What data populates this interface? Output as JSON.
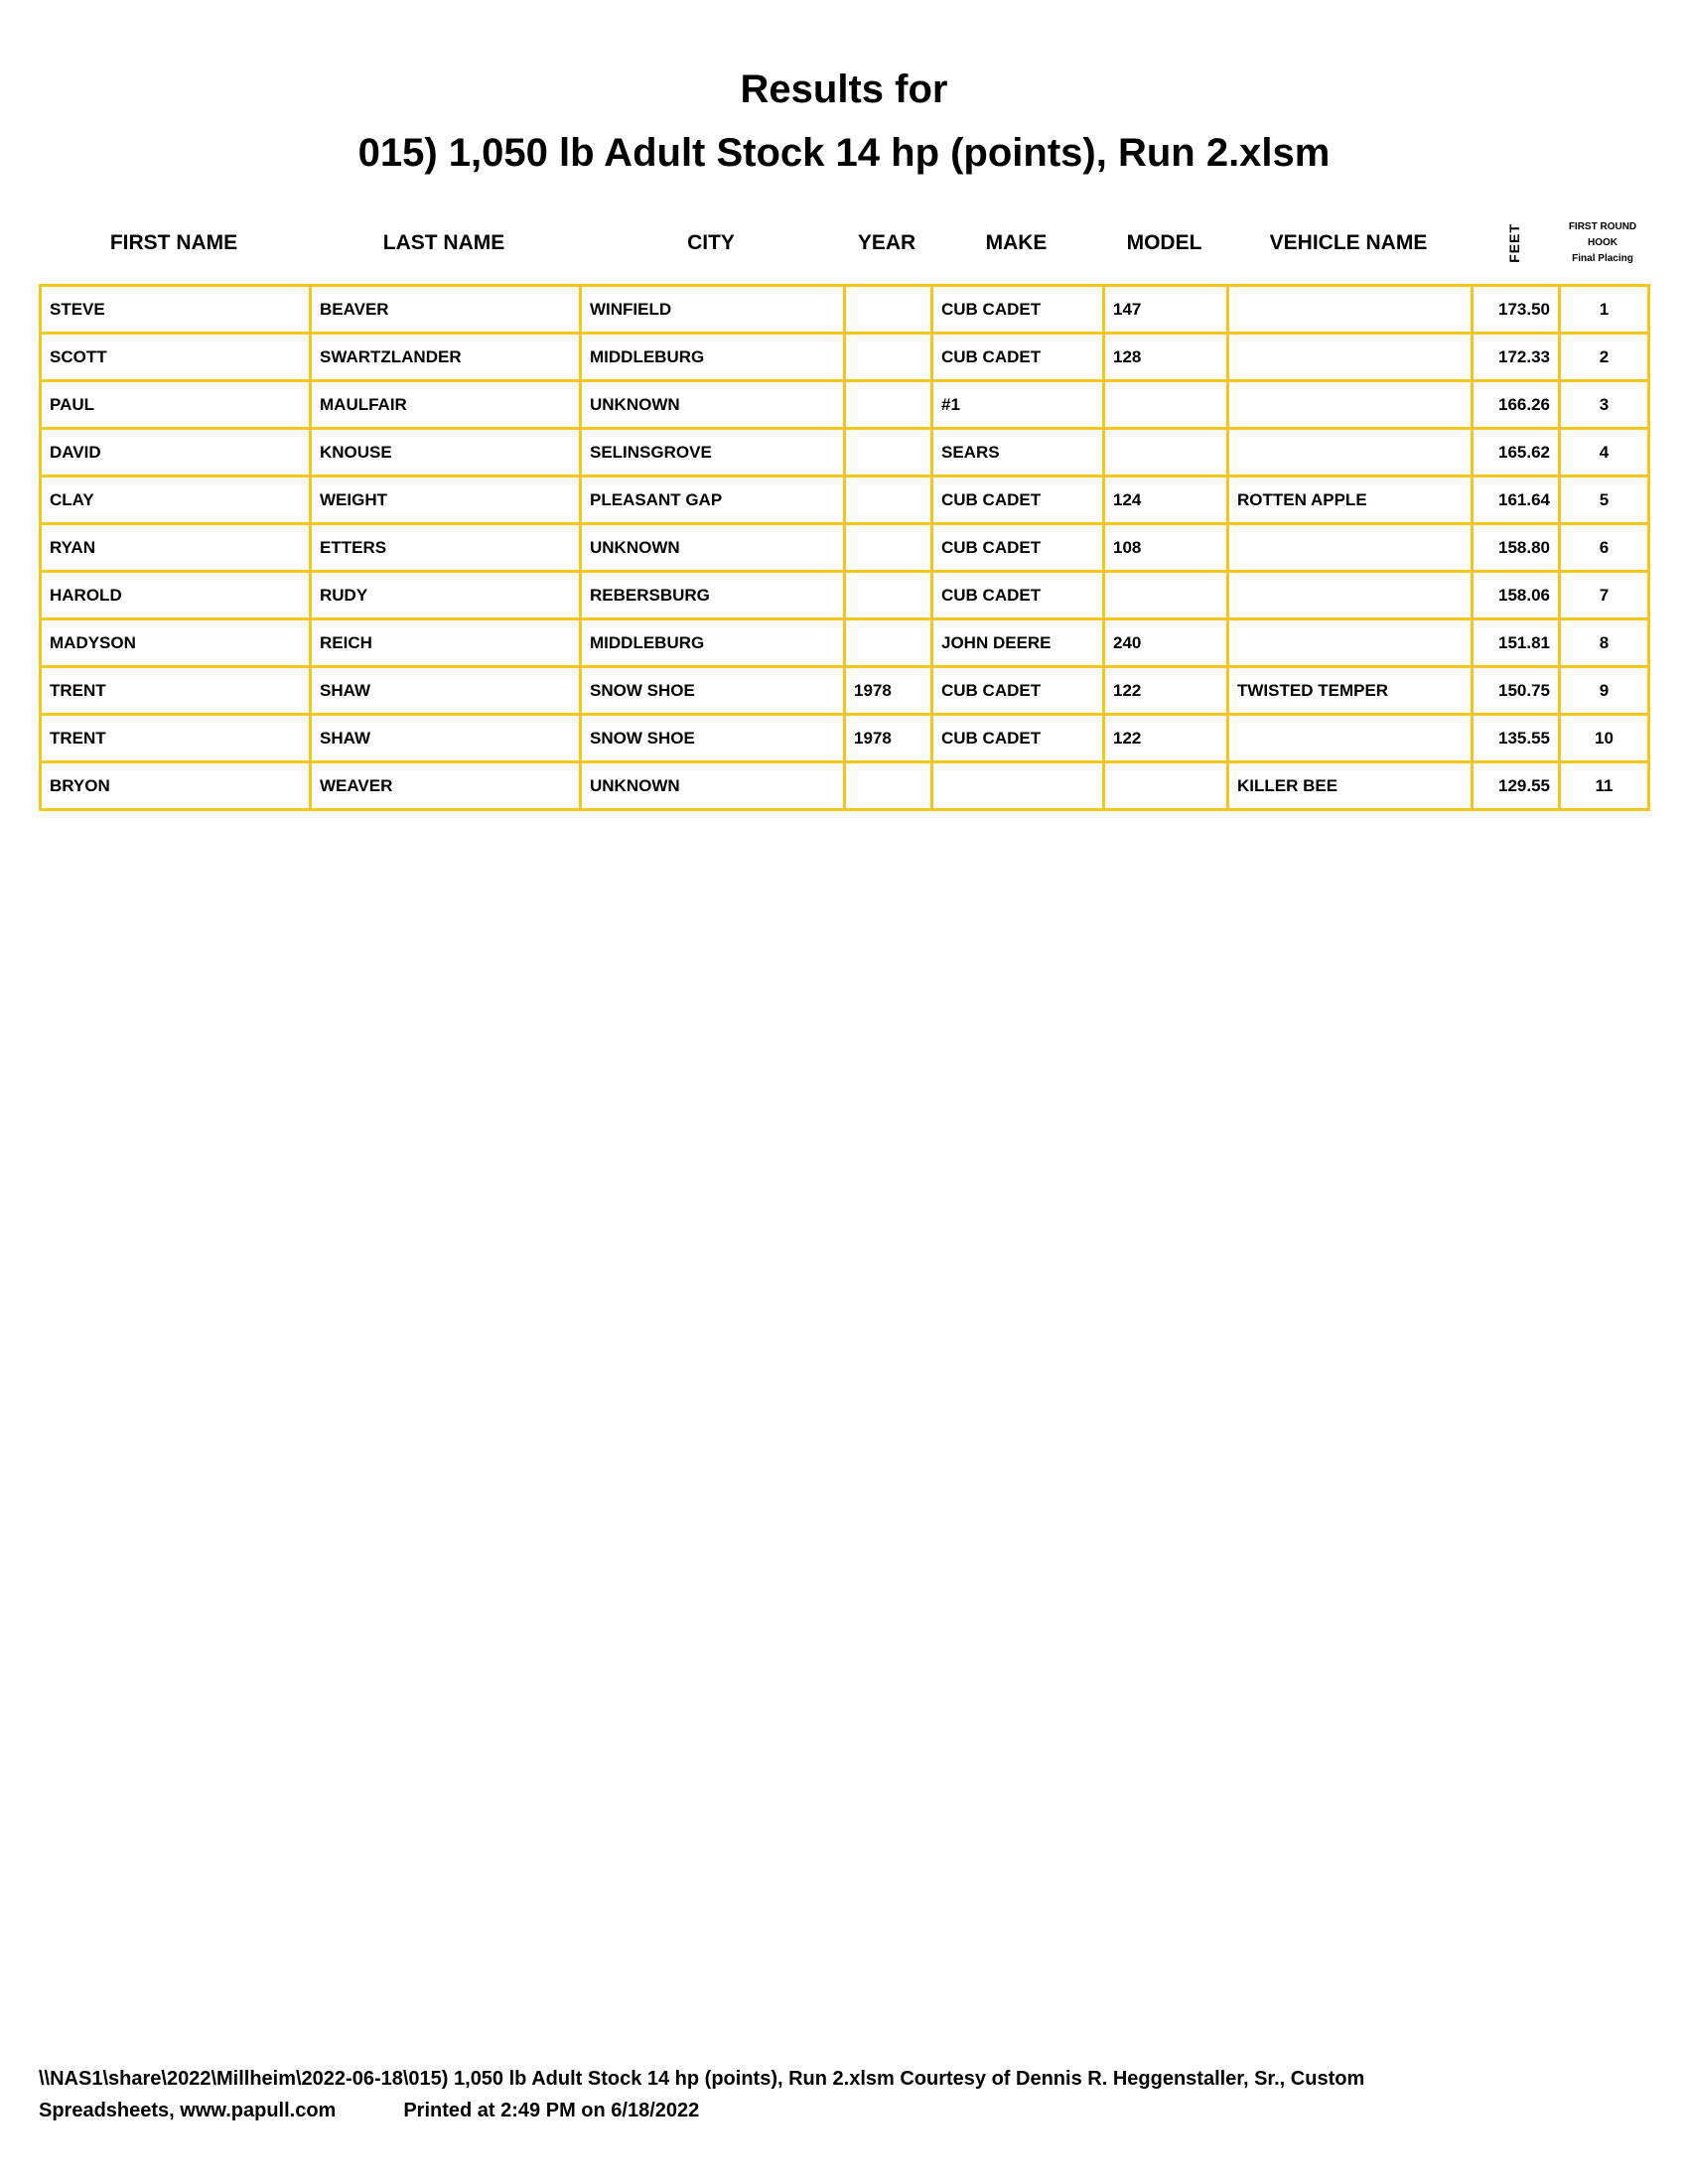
{
  "title_line1": "Results for",
  "title_line2": "015) 1,050 lb Adult Stock 14 hp (points), Run 2.xlsm",
  "headers": {
    "first_name": "FIRST NAME",
    "last_name": "LAST NAME",
    "city": "CITY",
    "year": "YEAR",
    "make": "MAKE",
    "model": "MODEL",
    "vehicle_name": "VEHICLE NAME",
    "feet": "FEET",
    "hook_line1": "FIRST ROUND",
    "hook_line2": "HOOK",
    "hook_line3": "Final Placing"
  },
  "rows": [
    [
      "STEVE",
      "BEAVER",
      "WINFIELD",
      "",
      "CUB CADET",
      "147",
      "",
      "173.50",
      "1"
    ],
    [
      "SCOTT",
      "SWARTZLANDER",
      "MIDDLEBURG",
      "",
      "CUB CADET",
      "128",
      "",
      "172.33",
      "2"
    ],
    [
      "PAUL",
      "MAULFAIR",
      "UNKNOWN",
      "",
      "#1",
      "",
      "",
      "166.26",
      "3"
    ],
    [
      "DAVID",
      "KNOUSE",
      "SELINSGROVE",
      "",
      "SEARS",
      "",
      "",
      "165.62",
      "4"
    ],
    [
      "CLAY",
      "WEIGHT",
      "PLEASANT GAP",
      "",
      "CUB CADET",
      "124",
      "ROTTEN APPLE",
      "161.64",
      "5"
    ],
    [
      "RYAN",
      "ETTERS",
      "UNKNOWN",
      "",
      "CUB CADET",
      "108",
      "",
      "158.80",
      "6"
    ],
    [
      "HAROLD",
      "RUDY",
      "REBERSBURG",
      "",
      "CUB CADET",
      "",
      "",
      "158.06",
      "7"
    ],
    [
      "MADYSON",
      "REICH",
      "MIDDLEBURG",
      "",
      "JOHN DEERE",
      "240",
      "",
      "151.81",
      "8"
    ],
    [
      "TRENT",
      "SHAW",
      "SNOW SHOE",
      "1978",
      "CUB CADET",
      "122",
      "TWISTED TEMPER",
      "150.75",
      "9"
    ],
    [
      "TRENT",
      "SHAW",
      "SNOW SHOE",
      "1978",
      "CUB CADET",
      "122",
      "",
      "135.55",
      "10"
    ],
    [
      "BRYON",
      "WEAVER",
      "UNKNOWN",
      "",
      "",
      "",
      "KILLER BEE",
      "129.55",
      "11"
    ]
  ],
  "footer_line1": "\\\\NAS1\\share\\2022\\Millheim\\2022-06-18\\015) 1,050 lb Adult Stock 14 hp (points), Run 2.xlsm  Courtesy of Dennis R. Heggenstaller, Sr., Custom",
  "footer_line2_left": "Spreadsheets, www.papull.com",
  "footer_line2_right": "Printed at 2:49 PM on 6/18/2022",
  "border_color": "#f5c518"
}
